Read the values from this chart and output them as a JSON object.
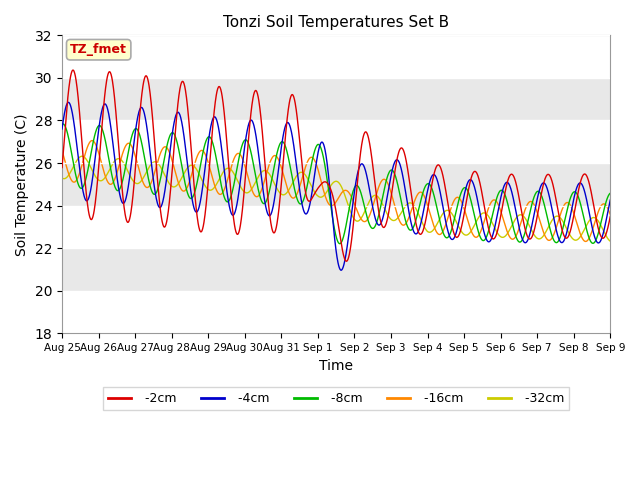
{
  "title": "Tonzi Soil Temperatures Set B",
  "xlabel": "Time",
  "ylabel": "Soil Temperature (C)",
  "ylim": [
    18,
    32
  ],
  "yticks": [
    18,
    20,
    22,
    24,
    26,
    28,
    30,
    32
  ],
  "annotation_text": "TZ_fmet",
  "annotation_color": "#cc0000",
  "annotation_bg": "#ffffcc",
  "annotation_border": "#aaaaaa",
  "line_colors": {
    "-2cm": "#dd0000",
    "-4cm": "#0000cc",
    "-8cm": "#00bb00",
    "-16cm": "#ff8800",
    "-32cm": "#cccc00"
  },
  "legend_labels": [
    "-2cm",
    "-4cm",
    "-8cm",
    "-16cm",
    "-32cm"
  ],
  "plot_bg_color": "#e8e8e8",
  "grid_color": "#ffffff",
  "num_points": 1600,
  "figsize": [
    6.4,
    4.8
  ],
  "dpi": 100
}
